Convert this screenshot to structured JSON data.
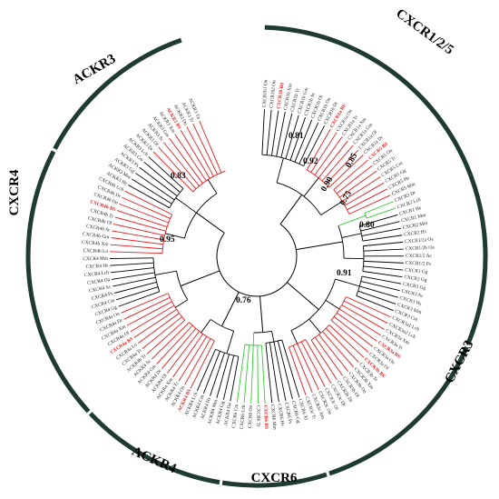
{
  "colors": {
    "black": "#000000",
    "red": "#e41a1c",
    "green": "#33cc33",
    "bar": "#1f3a2e"
  },
  "groups": [
    {
      "id": "cxcr125",
      "label": "CXCR1/2/5"
    },
    {
      "id": "cxcr3",
      "label": "CXCR3"
    },
    {
      "id": "cxcr6",
      "label": "CXCR6"
    },
    {
      "id": "ackr4",
      "label": "ACKR4"
    },
    {
      "id": "cxcr4",
      "label": "CXCR4"
    },
    {
      "id": "ackr3",
      "label": "ACKR3"
    }
  ],
  "bootstrap": [
    "0.81",
    "0.92",
    "0.85",
    "0.90",
    "0.75",
    "0.80",
    "0.83",
    "0.95",
    "0.91",
    "0.76"
  ],
  "leaves": [
    {
      "l": "CXCR1b1 On",
      "c": "black"
    },
    {
      "l": "CXCR1b2 On",
      "c": "black"
    },
    {
      "l": "CXCR1b BS",
      "c": "red",
      "b": true
    },
    {
      "l": "CXCR1b Xm",
      "c": "black"
    },
    {
      "l": "CXCR1b Tr",
      "c": "black"
    },
    {
      "l": "CXCR1b Gm",
      "c": "black"
    },
    {
      "l": "CXCR1b Sc",
      "c": "black"
    },
    {
      "l": "CXCR1b Ol",
      "c": "black"
    },
    {
      "l": "CXCR1b Oa",
      "c": "black"
    },
    {
      "l": "CXCR1b Dr",
      "c": "black"
    },
    {
      "l": "CXCR1a BS",
      "c": "red",
      "b": true
    },
    {
      "l": "CXCR1a On",
      "c": "black"
    },
    {
      "l": "CXCR1a Tr",
      "c": "black"
    },
    {
      "l": "CXCR1a Xm",
      "c": "black"
    },
    {
      "l": "CXCR1a Gm",
      "c": "black"
    },
    {
      "l": "CXCR1a Ol",
      "c": "black"
    },
    {
      "l": "CXCR1a Dr",
      "c": "black"
    },
    {
      "l": "CXCR5 BS",
      "c": "red",
      "b": true
    },
    {
      "l": "CXCR5 On",
      "c": "black"
    },
    {
      "l": "CXCR5 Tr",
      "c": "black"
    },
    {
      "l": "CXCR5 Cm",
      "c": "black"
    },
    {
      "l": "CXCR5 Gg",
      "c": "black"
    },
    {
      "l": "CXCR5 Hs",
      "c": "black"
    },
    {
      "l": "CXCR5 Mm",
      "c": "black"
    },
    {
      "l": "CXCR2 Dr",
      "c": "black"
    },
    {
      "l": "CXCR2 Lch",
      "c": "black"
    },
    {
      "l": "CXCR1 Hs",
      "c": "black"
    },
    {
      "l": "CXCR1 Mm",
      "c": "black"
    },
    {
      "l": "CXCR2 Mm",
      "c": "black"
    },
    {
      "l": "CXCR2 Hs",
      "c": "black"
    },
    {
      "l": "CXCR1/2a Oa",
      "c": "black"
    },
    {
      "l": "CXCR1/2b Oa",
      "c": "black"
    },
    {
      "l": "CXCR1/2 Ac",
      "c": "black"
    },
    {
      "l": "CXCR1/2 Ps",
      "c": "black"
    },
    {
      "l": "CXCR1 Gg",
      "c": "black"
    },
    {
      "l": "CXCR2 Gg",
      "c": "black"
    },
    {
      "l": "CXCR3 Gg",
      "c": "black"
    },
    {
      "l": "CXCR3 Ac",
      "c": "black"
    },
    {
      "l": "CXCR3 Hs",
      "c": "black"
    },
    {
      "l": "CXCR3 Mm",
      "c": "black"
    },
    {
      "l": "CXCR3 Cm",
      "c": "black"
    },
    {
      "l": "CXCR3a1 Lch",
      "c": "black"
    },
    {
      "l": "CXCR3a2 Lch",
      "c": "black"
    },
    {
      "l": "CXCR3a Xm",
      "c": "black"
    },
    {
      "l": "CXCR3a Tr",
      "c": "black"
    },
    {
      "l": "CXCR3a BS",
      "c": "red",
      "b": true
    },
    {
      "l": "CXCR3a On",
      "c": "black"
    },
    {
      "l": "CXCR3a Ol",
      "c": "black"
    },
    {
      "l": "CXCR3b BS",
      "c": "red",
      "b": true
    },
    {
      "l": "CXCR3b Tr",
      "c": "black"
    },
    {
      "l": "CXCR3b Xm",
      "c": "black"
    },
    {
      "l": "CXCR3b On",
      "c": "black"
    },
    {
      "l": "CXCR3b Ol",
      "c": "black"
    },
    {
      "l": "CXCR3b Dr",
      "c": "black"
    },
    {
      "l": "CXCR3c Dr",
      "c": "black"
    },
    {
      "l": "CXCR3c Ol",
      "c": "black"
    },
    {
      "l": "CXCR3c On",
      "c": "black"
    },
    {
      "l": "CXCR3c Xm",
      "c": "black"
    },
    {
      "l": "CXCR3c Tr",
      "c": "black"
    },
    {
      "l": "CXCR6 Xl",
      "c": "black"
    },
    {
      "l": "CXCR6 Gg",
      "c": "black"
    },
    {
      "l": "CXCR6 Ps",
      "c": "black"
    },
    {
      "l": "CXCR6 Hs",
      "c": "black"
    },
    {
      "l": "CXCR6 Mm",
      "c": "black"
    },
    {
      "l": "CXCR6 BS",
      "c": "red",
      "b": true
    },
    {
      "l": "CXCR6 Tr",
      "c": "black"
    },
    {
      "l": "CXCR6 On",
      "c": "black"
    },
    {
      "l": "CXCR6 Lch",
      "c": "black"
    },
    {
      "l": "CXCR6 Cm",
      "c": "black"
    },
    {
      "l": "ACKR4 Oa",
      "c": "black"
    },
    {
      "l": "ACKR4 Gg",
      "c": "black"
    },
    {
      "l": "ACKR4 Mm",
      "c": "black"
    },
    {
      "l": "ACKR4 Hs",
      "c": "black"
    },
    {
      "l": "ACKR4 Cm",
      "c": "black"
    },
    {
      "l": "ACKR4 Lch",
      "c": "black"
    },
    {
      "l": "ACKR4 BS",
      "c": "red",
      "b": true
    },
    {
      "l": "ACKR4 On",
      "c": "black"
    },
    {
      "l": "ACKR4 Tr",
      "c": "black"
    },
    {
      "l": "ACKR4 Xm",
      "c": "black"
    },
    {
      "l": "ACKR4 Ol",
      "c": "black"
    },
    {
      "l": "ACKR4 Dr",
      "c": "black"
    },
    {
      "l": "ACKR4 Gm",
      "c": "black"
    },
    {
      "l": "ACKR4 Sc",
      "c": "black"
    },
    {
      "l": "ACKR4b Tr",
      "c": "black"
    },
    {
      "l": "CXCR4a Tr",
      "c": "black"
    },
    {
      "l": "CXCR4a Lo",
      "c": "black"
    },
    {
      "l": "CXCR4a BS",
      "c": "red",
      "b": true
    },
    {
      "l": "CXCR4a Ol",
      "c": "black"
    },
    {
      "l": "CXCR4a Xm",
      "c": "black"
    },
    {
      "l": "CXCR4a Dr",
      "c": "black"
    },
    {
      "l": "CXCR4a On",
      "c": "black"
    },
    {
      "l": "CXCR4 Gg",
      "c": "black"
    },
    {
      "l": "CXCR4 Cm",
      "c": "black"
    },
    {
      "l": "CXCR4 Ps",
      "c": "black"
    },
    {
      "l": "CXCR4 Ac",
      "c": "black"
    },
    {
      "l": "CXCR4 Oa",
      "c": "black"
    },
    {
      "l": "CXCR4 Lch",
      "c": "black"
    },
    {
      "l": "CXCR4 Hs",
      "c": "black"
    },
    {
      "l": "CXCR4 Mm",
      "c": "black"
    },
    {
      "l": "CXCR4b Lo",
      "c": "black"
    },
    {
      "l": "CXCR4b Xm",
      "c": "black"
    },
    {
      "l": "CXCR4b Gm",
      "c": "black"
    },
    {
      "l": "CXCR4b Sc",
      "c": "black"
    },
    {
      "l": "CXCR4b Ol",
      "c": "black"
    },
    {
      "l": "CXCR4b Tr",
      "c": "black"
    },
    {
      "l": "CXCR4b BS",
      "c": "red",
      "b": true
    },
    {
      "l": "CXCR4b On",
      "c": "black"
    },
    {
      "l": "CXCR4b Dr",
      "c": "black"
    },
    {
      "l": "CXCR4b Lch",
      "c": "black"
    },
    {
      "l": "ACKR3 Hs",
      "c": "black"
    },
    {
      "l": "ACKR3 Mm",
      "c": "black"
    },
    {
      "l": "ACKR3 Gg",
      "c": "black"
    },
    {
      "l": "ACKR3 Ps",
      "c": "black"
    },
    {
      "l": "ACKR3 Cm",
      "c": "black"
    },
    {
      "l": "ACKR3 Lch",
      "c": "black"
    },
    {
      "l": "ACKR3 Dr",
      "c": "black"
    },
    {
      "l": "ACKR3 Ol",
      "c": "black"
    },
    {
      "l": "ACKR3 Sc",
      "c": "black"
    },
    {
      "l": "ACKR3 Gm",
      "c": "black"
    },
    {
      "l": "ACKR3 Xm",
      "c": "black"
    },
    {
      "l": "ACKR3 BS",
      "c": "red",
      "b": true
    },
    {
      "l": "ACKR3 On",
      "c": "black"
    },
    {
      "l": "ACKR3 Tr",
      "c": "black"
    },
    {
      "l": "ACKR3 Tn",
      "c": "black"
    }
  ]
}
